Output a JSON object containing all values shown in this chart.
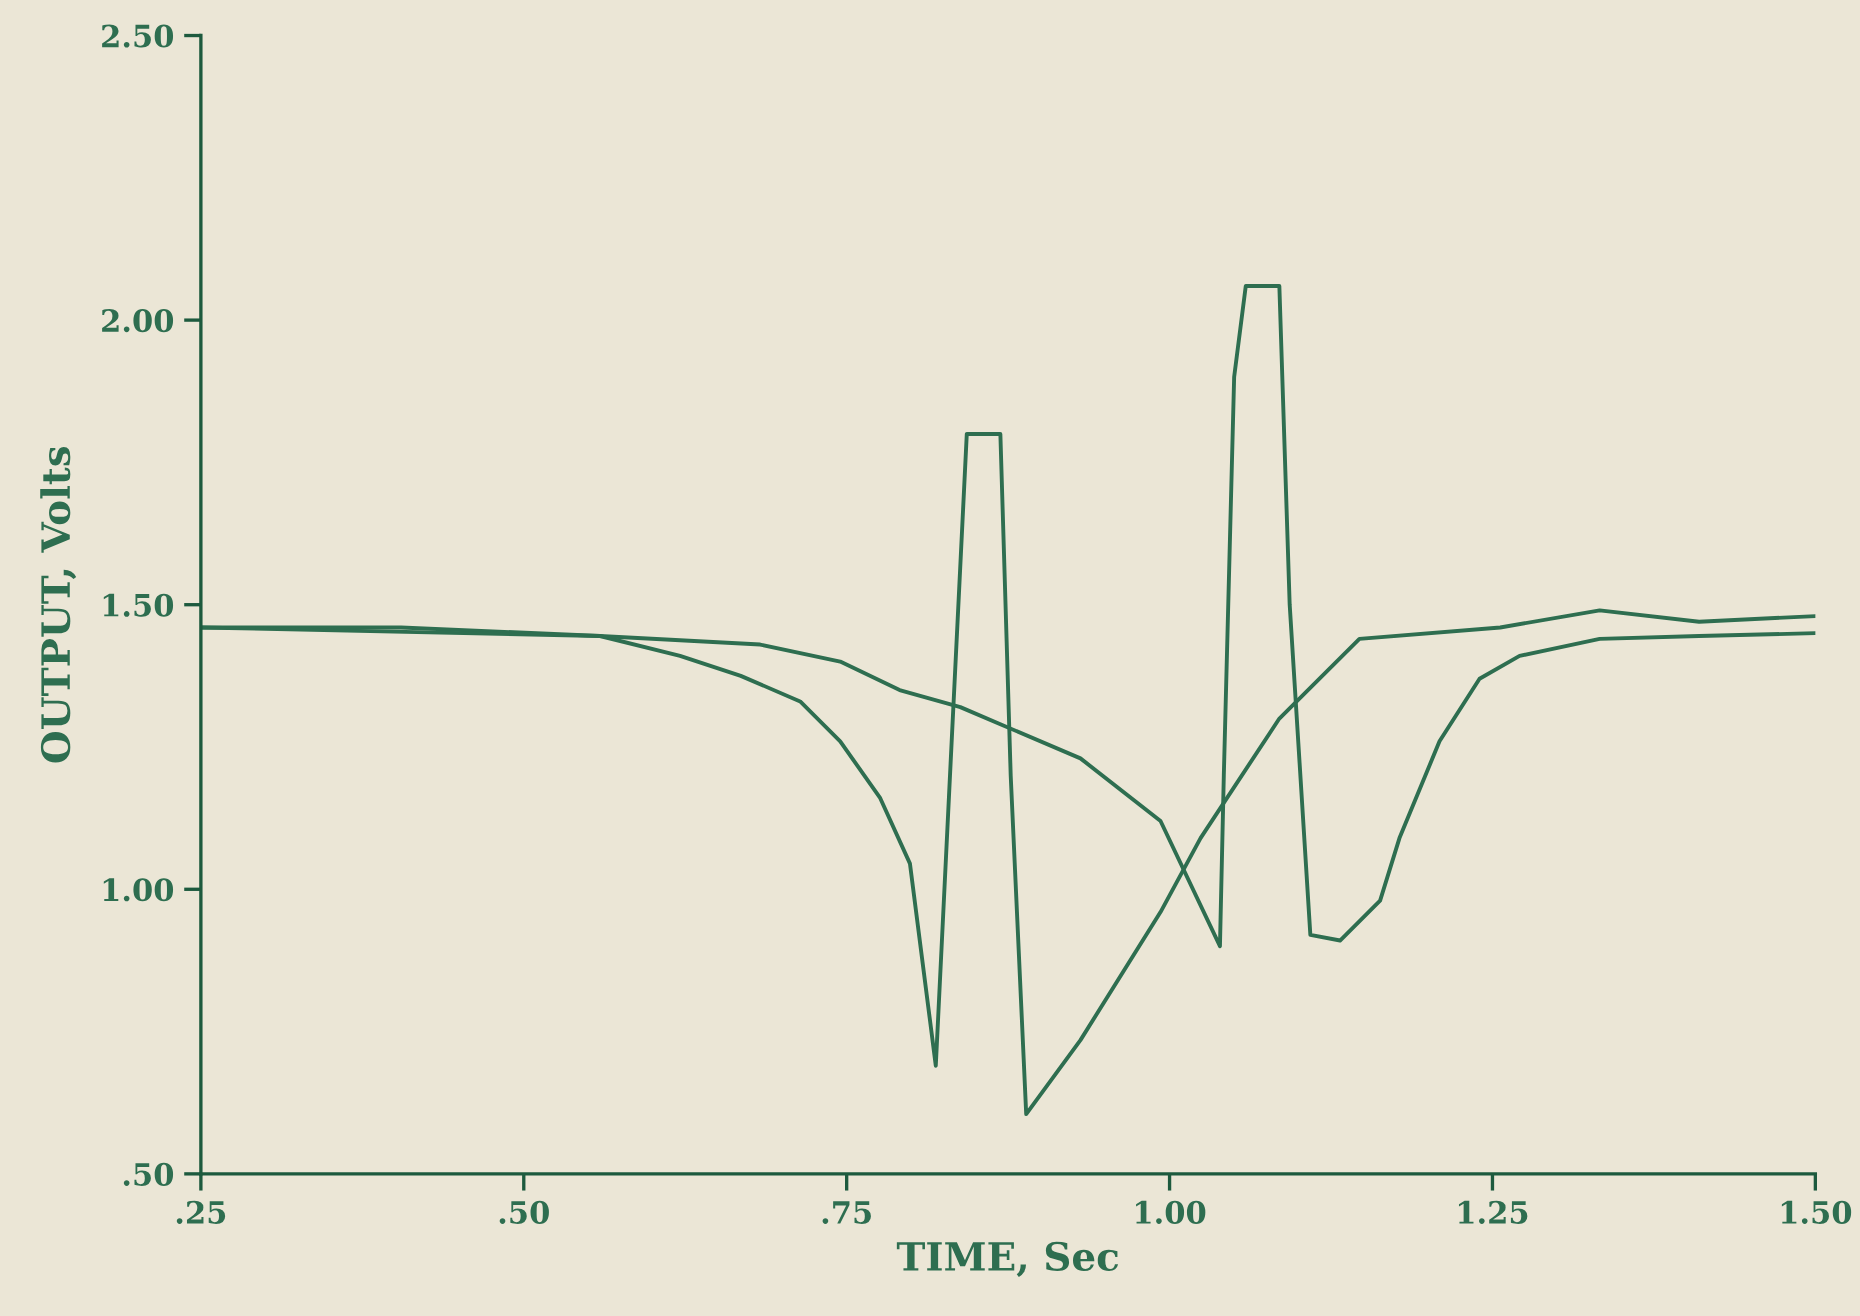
{
  "chart_data": {
    "type": "line",
    "xlabel": "TIME, Sec",
    "ylabel": "OUTPUT, Volts",
    "xlim": [
      0.25,
      1.5
    ],
    "ylim": [
      0.5,
      2.5
    ],
    "xticks": [
      {
        "value": 0.25,
        "label": ".25"
      },
      {
        "value": 0.5,
        "label": ".50"
      },
      {
        "value": 0.75,
        "label": ".75"
      },
      {
        "value": 1.0,
        "label": "1.00"
      },
      {
        "value": 1.25,
        "label": "1.25"
      },
      {
        "value": 1.5,
        "label": "1.50"
      }
    ],
    "yticks": [
      {
        "value": 0.5,
        "label": ".50"
      },
      {
        "value": 1.0,
        "label": "1.00"
      },
      {
        "value": 1.5,
        "label": "1.50"
      },
      {
        "value": 2.0,
        "label": "2.00"
      },
      {
        "value": 2.5,
        "label": "2.50"
      }
    ],
    "grid": false,
    "marker": "none",
    "line_style": "solid",
    "series": [
      {
        "color": "#2e6e50",
        "x": [
          0.25,
          0.405,
          0.559,
          0.621,
          0.668,
          0.714,
          0.745,
          0.776,
          0.799,
          0.819,
          0.83,
          0.843,
          0.869,
          0.877,
          0.889,
          0.931,
          0.993,
          1.024,
          1.085,
          1.147,
          1.256,
          1.333,
          1.41,
          1.5
        ],
        "values": [
          1.46,
          1.46,
          1.445,
          1.41,
          1.375,
          1.33,
          1.26,
          1.16,
          1.045,
          0.69,
          1.2,
          1.8,
          1.8,
          1.2,
          0.605,
          0.735,
          0.96,
          1.09,
          1.3,
          1.44,
          1.46,
          1.49,
          1.47,
          1.48
        ]
      },
      {
        "color": "#2e6e50",
        "x": [
          0.25,
          0.559,
          0.683,
          0.745,
          0.791,
          0.838,
          0.869,
          0.931,
          0.993,
          1.039,
          1.042,
          1.05,
          1.059,
          1.085,
          1.093,
          1.109,
          1.132,
          1.163,
          1.178,
          1.209,
          1.24,
          1.271,
          1.333,
          1.41,
          1.5
        ],
        "values": [
          1.46,
          1.445,
          1.43,
          1.4,
          1.35,
          1.32,
          1.29,
          1.23,
          1.12,
          0.9,
          1.2,
          1.9,
          2.06,
          2.06,
          1.5,
          0.92,
          0.91,
          0.98,
          1.09,
          1.26,
          1.37,
          1.41,
          1.44,
          1.445,
          1.45
        ]
      }
    ]
  }
}
